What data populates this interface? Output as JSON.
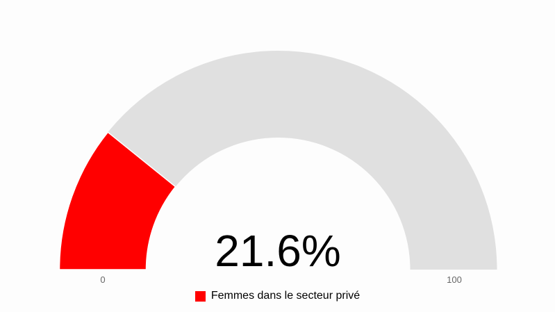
{
  "chart_data": {
    "type": "gauge",
    "min": 0,
    "max": 100,
    "value": 21.6,
    "value_label": "21.6%",
    "min_label": "0",
    "max_label": "100",
    "series": [
      {
        "name": "Femmes dans le secteur privé",
        "value": 21.6,
        "color": "#ff0000"
      }
    ],
    "track_color": "#e0e0e0",
    "legend_position": "bottom"
  }
}
